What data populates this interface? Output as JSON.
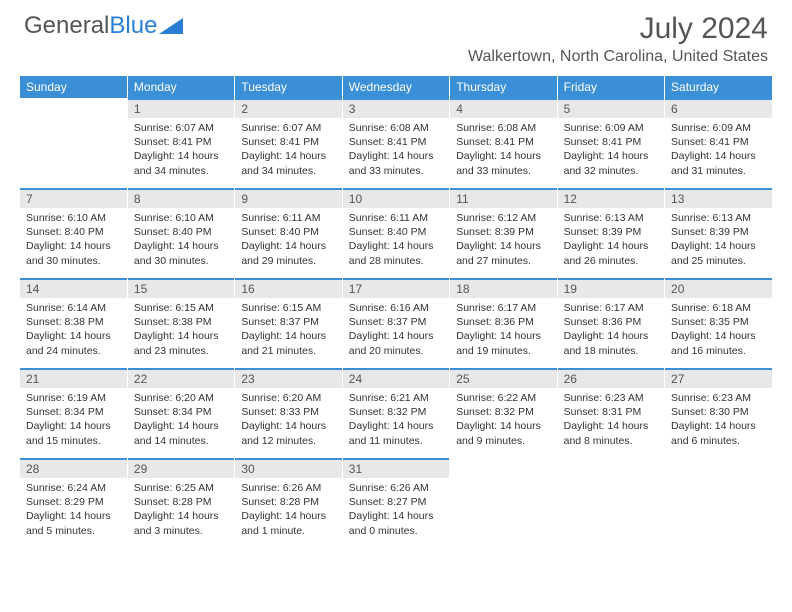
{
  "logo": {
    "text1": "General",
    "text2": "Blue"
  },
  "title": "July 2024",
  "location": "Walkertown, North Carolina, United States",
  "colors": {
    "header_bg": "#3b8fd6",
    "header_text": "#ffffff",
    "daynum_bg": "#e8e8e8",
    "daynum_border": "#3b8fd6",
    "text": "#333333",
    "title_text": "#555555"
  },
  "day_headers": [
    "Sunday",
    "Monday",
    "Tuesday",
    "Wednesday",
    "Thursday",
    "Friday",
    "Saturday"
  ],
  "weeks": [
    [
      {
        "n": "",
        "sr": "",
        "ss": "",
        "dl": "",
        "empty": true
      },
      {
        "n": "1",
        "sr": "Sunrise: 6:07 AM",
        "ss": "Sunset: 8:41 PM",
        "dl": "Daylight: 14 hours and 34 minutes."
      },
      {
        "n": "2",
        "sr": "Sunrise: 6:07 AM",
        "ss": "Sunset: 8:41 PM",
        "dl": "Daylight: 14 hours and 34 minutes."
      },
      {
        "n": "3",
        "sr": "Sunrise: 6:08 AM",
        "ss": "Sunset: 8:41 PM",
        "dl": "Daylight: 14 hours and 33 minutes."
      },
      {
        "n": "4",
        "sr": "Sunrise: 6:08 AM",
        "ss": "Sunset: 8:41 PM",
        "dl": "Daylight: 14 hours and 33 minutes."
      },
      {
        "n": "5",
        "sr": "Sunrise: 6:09 AM",
        "ss": "Sunset: 8:41 PM",
        "dl": "Daylight: 14 hours and 32 minutes."
      },
      {
        "n": "6",
        "sr": "Sunrise: 6:09 AM",
        "ss": "Sunset: 8:41 PM",
        "dl": "Daylight: 14 hours and 31 minutes."
      }
    ],
    [
      {
        "n": "7",
        "sr": "Sunrise: 6:10 AM",
        "ss": "Sunset: 8:40 PM",
        "dl": "Daylight: 14 hours and 30 minutes."
      },
      {
        "n": "8",
        "sr": "Sunrise: 6:10 AM",
        "ss": "Sunset: 8:40 PM",
        "dl": "Daylight: 14 hours and 30 minutes."
      },
      {
        "n": "9",
        "sr": "Sunrise: 6:11 AM",
        "ss": "Sunset: 8:40 PM",
        "dl": "Daylight: 14 hours and 29 minutes."
      },
      {
        "n": "10",
        "sr": "Sunrise: 6:11 AM",
        "ss": "Sunset: 8:40 PM",
        "dl": "Daylight: 14 hours and 28 minutes."
      },
      {
        "n": "11",
        "sr": "Sunrise: 6:12 AM",
        "ss": "Sunset: 8:39 PM",
        "dl": "Daylight: 14 hours and 27 minutes."
      },
      {
        "n": "12",
        "sr": "Sunrise: 6:13 AM",
        "ss": "Sunset: 8:39 PM",
        "dl": "Daylight: 14 hours and 26 minutes."
      },
      {
        "n": "13",
        "sr": "Sunrise: 6:13 AM",
        "ss": "Sunset: 8:39 PM",
        "dl": "Daylight: 14 hours and 25 minutes."
      }
    ],
    [
      {
        "n": "14",
        "sr": "Sunrise: 6:14 AM",
        "ss": "Sunset: 8:38 PM",
        "dl": "Daylight: 14 hours and 24 minutes."
      },
      {
        "n": "15",
        "sr": "Sunrise: 6:15 AM",
        "ss": "Sunset: 8:38 PM",
        "dl": "Daylight: 14 hours and 23 minutes."
      },
      {
        "n": "16",
        "sr": "Sunrise: 6:15 AM",
        "ss": "Sunset: 8:37 PM",
        "dl": "Daylight: 14 hours and 21 minutes."
      },
      {
        "n": "17",
        "sr": "Sunrise: 6:16 AM",
        "ss": "Sunset: 8:37 PM",
        "dl": "Daylight: 14 hours and 20 minutes."
      },
      {
        "n": "18",
        "sr": "Sunrise: 6:17 AM",
        "ss": "Sunset: 8:36 PM",
        "dl": "Daylight: 14 hours and 19 minutes."
      },
      {
        "n": "19",
        "sr": "Sunrise: 6:17 AM",
        "ss": "Sunset: 8:36 PM",
        "dl": "Daylight: 14 hours and 18 minutes."
      },
      {
        "n": "20",
        "sr": "Sunrise: 6:18 AM",
        "ss": "Sunset: 8:35 PM",
        "dl": "Daylight: 14 hours and 16 minutes."
      }
    ],
    [
      {
        "n": "21",
        "sr": "Sunrise: 6:19 AM",
        "ss": "Sunset: 8:34 PM",
        "dl": "Daylight: 14 hours and 15 minutes."
      },
      {
        "n": "22",
        "sr": "Sunrise: 6:20 AM",
        "ss": "Sunset: 8:34 PM",
        "dl": "Daylight: 14 hours and 14 minutes."
      },
      {
        "n": "23",
        "sr": "Sunrise: 6:20 AM",
        "ss": "Sunset: 8:33 PM",
        "dl": "Daylight: 14 hours and 12 minutes."
      },
      {
        "n": "24",
        "sr": "Sunrise: 6:21 AM",
        "ss": "Sunset: 8:32 PM",
        "dl": "Daylight: 14 hours and 11 minutes."
      },
      {
        "n": "25",
        "sr": "Sunrise: 6:22 AM",
        "ss": "Sunset: 8:32 PM",
        "dl": "Daylight: 14 hours and 9 minutes."
      },
      {
        "n": "26",
        "sr": "Sunrise: 6:23 AM",
        "ss": "Sunset: 8:31 PM",
        "dl": "Daylight: 14 hours and 8 minutes."
      },
      {
        "n": "27",
        "sr": "Sunrise: 6:23 AM",
        "ss": "Sunset: 8:30 PM",
        "dl": "Daylight: 14 hours and 6 minutes."
      }
    ],
    [
      {
        "n": "28",
        "sr": "Sunrise: 6:24 AM",
        "ss": "Sunset: 8:29 PM",
        "dl": "Daylight: 14 hours and 5 minutes."
      },
      {
        "n": "29",
        "sr": "Sunrise: 6:25 AM",
        "ss": "Sunset: 8:28 PM",
        "dl": "Daylight: 14 hours and 3 minutes."
      },
      {
        "n": "30",
        "sr": "Sunrise: 6:26 AM",
        "ss": "Sunset: 8:28 PM",
        "dl": "Daylight: 14 hours and 1 minute."
      },
      {
        "n": "31",
        "sr": "Sunrise: 6:26 AM",
        "ss": "Sunset: 8:27 PM",
        "dl": "Daylight: 14 hours and 0 minutes."
      },
      {
        "n": "",
        "sr": "",
        "ss": "",
        "dl": "",
        "empty": true
      },
      {
        "n": "",
        "sr": "",
        "ss": "",
        "dl": "",
        "empty": true
      },
      {
        "n": "",
        "sr": "",
        "ss": "",
        "dl": "",
        "empty": true
      }
    ]
  ]
}
